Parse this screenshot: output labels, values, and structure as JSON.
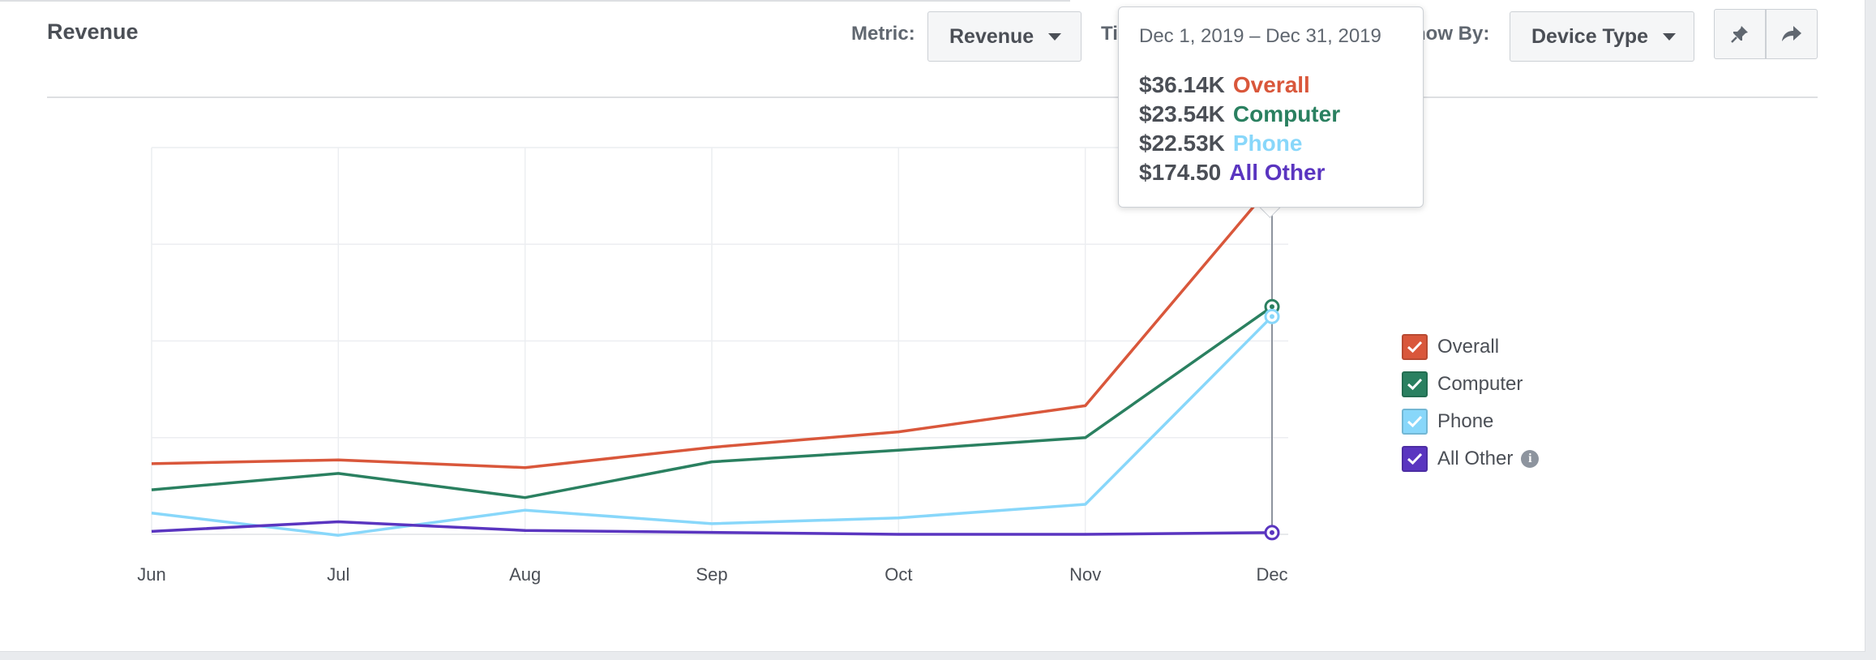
{
  "panel": {
    "title": "Revenue"
  },
  "controls": {
    "metric_label": "Metric:",
    "metric_value": "Revenue",
    "time_label_fragment": "Ti",
    "show_by_label_fragment": "how By:",
    "show_by_value": "Device Type"
  },
  "icons": {
    "pin": "pin-icon",
    "share": "share-icon",
    "check": "check-icon",
    "info": "info-icon"
  },
  "tooltip": {
    "range": "Dec 1, 2019 – Dec 31, 2019",
    "rows": [
      {
        "value": "$36.14K",
        "name": "Overall",
        "color": "#d9573b"
      },
      {
        "value": "$23.54K",
        "name": "Computer",
        "color": "#2a8060"
      },
      {
        "value": "$22.53K",
        "name": "Phone",
        "color": "#88d7fa"
      },
      {
        "value": "$174.50",
        "name": "All Other",
        "color": "#5a35c0"
      }
    ]
  },
  "chart_data": {
    "type": "line",
    "x": [
      "Jun",
      "Jul",
      "Aug",
      "Sep",
      "Oct",
      "Nov",
      "Dec"
    ],
    "ylim": [
      0,
      40000
    ],
    "grid": true,
    "y_tick_labels_shown": false,
    "legend_position": "right",
    "highlighted_point": "Dec",
    "series": [
      {
        "name": "Overall",
        "color": "#d9573b",
        "values": [
          7300,
          7700,
          6900,
          9000,
          10600,
          13300,
          36140
        ]
      },
      {
        "name": "Computer",
        "color": "#2a8060",
        "values": [
          4600,
          6300,
          3800,
          7500,
          8700,
          10000,
          23540
        ]
      },
      {
        "name": "Phone",
        "color": "#88d7fa",
        "values": [
          2200,
          -100,
          2500,
          1100,
          1700,
          3100,
          22530
        ]
      },
      {
        "name": "All Other",
        "color": "#5a35c0",
        "values": [
          300,
          1300,
          400,
          200,
          0,
          0,
          174.5
        ]
      }
    ]
  }
}
